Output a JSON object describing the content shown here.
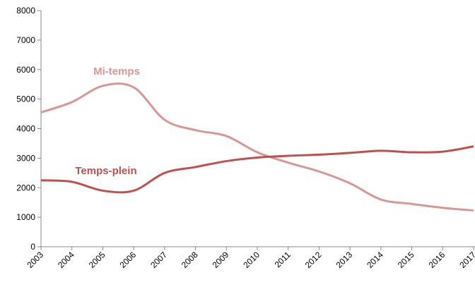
{
  "chart_data": {
    "type": "line",
    "categories": [
      "2003",
      "2004",
      "2005",
      "2006",
      "2007",
      "2008",
      "2009",
      "2010",
      "2011",
      "2012",
      "2013",
      "2014",
      "2015",
      "2016",
      "2017"
    ],
    "series": [
      {
        "name": "Mi-temps",
        "color": "#d99694",
        "values": [
          4550,
          4900,
          5450,
          5400,
          4300,
          3950,
          3750,
          3200,
          2850,
          2550,
          2150,
          1600,
          1450,
          1320,
          1230
        ]
      },
      {
        "name": "Temps-plein",
        "color": "#c0504d",
        "values": [
          2250,
          2200,
          1900,
          1900,
          2500,
          2700,
          2900,
          3020,
          3080,
          3120,
          3180,
          3250,
          3200,
          3220,
          3400
        ]
      }
    ],
    "ylim": [
      0,
      8000
    ],
    "yticks": [
      0,
      1000,
      2000,
      3000,
      4000,
      5000,
      6000,
      7000,
      8000
    ],
    "grid": false
  }
}
